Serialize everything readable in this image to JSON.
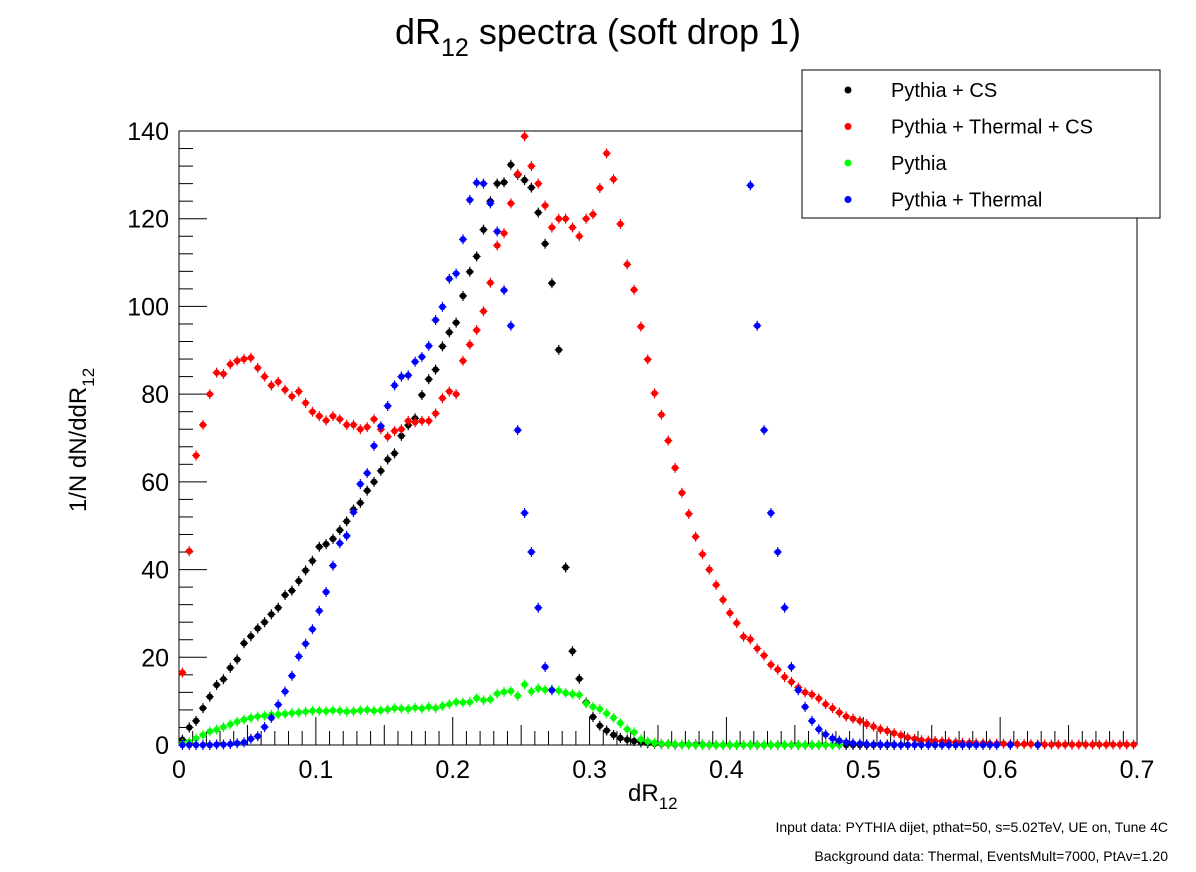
{
  "chart_data": {
    "type": "scatter",
    "title": "dR₁₂ spectra (soft drop 1)",
    "title_main": "dR",
    "title_sub": "12",
    "title_rest": " spectra (soft drop 1)",
    "xlabel": "dR₁₂",
    "ylabel": "1/N dN/ddR₁₂",
    "xlim": [
      0,
      0.7
    ],
    "ylim": [
      0,
      140
    ],
    "x_ticks": [
      "0",
      "0.1",
      "0.2",
      "0.3",
      "0.4",
      "0.5",
      "0.6",
      "0.7"
    ],
    "y_ticks": [
      "0",
      "20",
      "40",
      "60",
      "80",
      "100",
      "120",
      "140"
    ],
    "grid": false,
    "legend_position": "top-right",
    "series": [
      {
        "name": "Pythia + CS",
        "color": "#000000",
        "x": [
          0.0025,
          0.0075,
          0.0125,
          0.0175,
          0.0225,
          0.0275,
          0.0325,
          0.0375,
          0.0425,
          0.0475,
          0.0525,
          0.0575,
          0.0625,
          0.0675,
          0.0725,
          0.0775,
          0.0825,
          0.0875,
          0.0925,
          0.0975,
          0.1025,
          0.1075,
          0.1125,
          0.1175,
          0.1225,
          0.1275,
          0.1325,
          0.1375,
          0.1425,
          0.1475,
          0.1525,
          0.1575,
          0.1625,
          0.1675,
          0.1725,
          0.1775,
          0.1825,
          0.1875,
          0.1925,
          0.1975,
          0.2025,
          0.2075,
          0.2125,
          0.2175,
          0.2225,
          0.2275,
          0.2325,
          0.2375,
          0.2425,
          0.2475,
          0.2525,
          0.2575,
          0.2625,
          0.2675,
          0.2725,
          0.2775,
          0.2825,
          0.2875,
          0.2925,
          0.2975,
          0.3025,
          0.3075,
          0.3125,
          0.3175,
          0.3225,
          0.3275,
          0.3325,
          0.3375,
          0.3425,
          0.3475,
          0.3525,
          0.3575,
          0.3625,
          0.3675,
          0.3725,
          0.3775,
          0.3825,
          0.3875,
          0.3925,
          0.3975,
          0.4025,
          0.4075,
          0.4125,
          0.4175,
          0.4225,
          0.4275,
          0.4325,
          0.4375,
          0.4425,
          0.4475,
          0.4525,
          0.4575,
          0.4625,
          0.4675,
          0.4725,
          0.4775,
          0.4825,
          0.4875,
          0.4925,
          0.4975,
          0.5025,
          0.5075,
          0.5125,
          0.5175,
          0.5225,
          0.5275,
          0.5325
        ],
        "values": [
          1.2,
          4.0,
          5.5,
          8.4,
          11.0,
          13.7,
          15.0,
          17.6,
          19.5,
          23.2,
          24.8,
          26.6,
          28.0,
          29.8,
          31.3,
          34.2,
          35.2,
          37.4,
          39.8,
          42.0,
          45.2,
          45.8,
          47.0,
          49.0,
          51.0,
          53.7,
          55.2,
          58.0,
          60.0,
          62.5,
          65.1,
          66.5,
          70.5,
          72.9,
          74.5,
          79.8,
          83.4,
          85.6,
          90.9,
          94.1,
          96.3,
          102.4,
          107.9,
          111.4,
          117.5,
          124.0,
          128.0,
          128.3,
          132.3,
          130.0,
          128.8,
          127.1,
          121.4,
          114.3,
          105.3,
          90.1,
          40.5,
          21.4,
          15.1,
          9.7,
          6.4,
          4.4,
          3.3,
          2.3,
          1.6,
          1.2,
          0.9,
          0.6,
          0.4,
          0.3,
          0.2,
          0.2,
          0.1,
          0.1,
          0.1,
          0.1,
          0.1,
          0.0,
          0.0,
          0.0,
          0.0,
          0.0,
          0.0,
          0.0,
          0.0,
          0.0,
          0.0,
          0.0,
          0.0,
          0.0,
          0.0,
          0.0,
          0.0,
          0.0,
          0.0,
          0.0,
          0.0,
          0.0,
          0.0,
          0.0,
          0.0,
          0.0,
          0.0,
          0.0,
          0.0,
          0.0,
          0.0
        ]
      },
      {
        "name": "Pythia + Thermal + CS",
        "color": "#ff0000",
        "x": [
          0.0025,
          0.0075,
          0.0125,
          0.0175,
          0.0225,
          0.0275,
          0.0325,
          0.0375,
          0.0425,
          0.0475,
          0.0525,
          0.0575,
          0.0625,
          0.0675,
          0.0725,
          0.0775,
          0.0825,
          0.0875,
          0.0925,
          0.0975,
          0.1025,
          0.1075,
          0.1125,
          0.1175,
          0.1225,
          0.1275,
          0.1325,
          0.1375,
          0.1425,
          0.1475,
          0.1525,
          0.1575,
          0.1625,
          0.1675,
          0.1725,
          0.1775,
          0.1825,
          0.1875,
          0.1925,
          0.1975,
          0.2025,
          0.2075,
          0.2125,
          0.2175,
          0.2225,
          0.2275,
          0.2325,
          0.2375,
          0.2425,
          0.2475,
          0.2525,
          0.2575,
          0.2625,
          0.2675,
          0.2725,
          0.2775,
          0.2825,
          0.2875,
          0.2925,
          0.2975,
          0.3025,
          0.3075,
          0.3125,
          0.3175,
          0.3225,
          0.3275,
          0.3325,
          0.3375,
          0.3425,
          0.3475,
          0.3525,
          0.3575,
          0.3625,
          0.3675,
          0.3725,
          0.3775,
          0.3825,
          0.3875,
          0.3925,
          0.3975,
          0.4025,
          0.4075,
          0.4125,
          0.4175,
          0.4225,
          0.4275,
          0.4325,
          0.4375,
          0.4425,
          0.4475,
          0.4525,
          0.4575,
          0.4625,
          0.4675,
          0.4725,
          0.4775,
          0.4825,
          0.4875,
          0.4925,
          0.4975,
          0.5025,
          0.5075,
          0.5125,
          0.5175,
          0.5225,
          0.5275,
          0.5325,
          0.5375,
          0.5425,
          0.5475,
          0.5525,
          0.5575,
          0.5625,
          0.5675,
          0.5725,
          0.5775,
          0.5825,
          0.5875,
          0.5925,
          0.5975,
          0.6025,
          0.6075,
          0.6125,
          0.6175,
          0.6225,
          0.6275,
          0.6325,
          0.6375,
          0.6425,
          0.6475,
          0.6525,
          0.6575,
          0.6625,
          0.6675,
          0.6725,
          0.6775,
          0.6825,
          0.6875,
          0.6925,
          0.6975
        ],
        "values": [
          16.5,
          44.2,
          66.0,
          73.0,
          80.0,
          84.9,
          84.6,
          86.8,
          87.6,
          88.0,
          88.3,
          86.0,
          84.0,
          82.0,
          82.8,
          81.0,
          79.5,
          80.6,
          78.0,
          76.0,
          75.0,
          74.0,
          75.0,
          74.3,
          73.0,
          73.0,
          72.0,
          72.5,
          74.3,
          72.0,
          70.3,
          71.6,
          72.0,
          73.9,
          73.6,
          73.9,
          73.9,
          75.6,
          79.1,
          80.6,
          80.0,
          87.6,
          91.3,
          94.6,
          98.9,
          105.4,
          113.9,
          116.7,
          123.5,
          130.2,
          138.8,
          132.0,
          128.0,
          123.0,
          118.0,
          120.0,
          120.0,
          118.0,
          116.0,
          120.0,
          121.0,
          127.0,
          134.9,
          129.0,
          118.8,
          109.6,
          103.8,
          95.4,
          87.9,
          80.2,
          75.3,
          69.4,
          63.2,
          57.5,
          52.7,
          47.5,
          43.5,
          40.0,
          36.5,
          33.1,
          30.1,
          27.8,
          24.7,
          24.1,
          22.0,
          20.4,
          18.3,
          17.2,
          15.5,
          14.4,
          13.1,
          12.0,
          11.5,
          10.6,
          9.3,
          8.4,
          7.4,
          6.5,
          6.0,
          5.5,
          4.8,
          4.2,
          3.6,
          3.2,
          2.7,
          2.2,
          1.7,
          1.4,
          1.1,
          1.0,
          0.9,
          0.8,
          0.7,
          0.6,
          0.5,
          0.5,
          0.4,
          0.4,
          0.3,
          0.3,
          0.3,
          0.2,
          0.2,
          0.2,
          0.2,
          0.1,
          0.1,
          0.1,
          0.1,
          0.1,
          0.1,
          0.1,
          0.1,
          0.1,
          0.1,
          0.1,
          0.1,
          0.1,
          0.1,
          0.1
        ]
      },
      {
        "name": "Pythia",
        "color": "#00ff00",
        "x": [
          0.0025,
          0.0075,
          0.0125,
          0.0175,
          0.0225,
          0.0275,
          0.0325,
          0.0375,
          0.0425,
          0.0475,
          0.0525,
          0.0575,
          0.0625,
          0.0675,
          0.0725,
          0.0775,
          0.0825,
          0.0875,
          0.0925,
          0.0975,
          0.1025,
          0.1075,
          0.1125,
          0.1175,
          0.1225,
          0.1275,
          0.1325,
          0.1375,
          0.1425,
          0.1475,
          0.1525,
          0.1575,
          0.1625,
          0.1675,
          0.1725,
          0.1775,
          0.1825,
          0.1875,
          0.1925,
          0.1975,
          0.2025,
          0.2075,
          0.2125,
          0.2175,
          0.2225,
          0.2275,
          0.2325,
          0.2375,
          0.2425,
          0.2475,
          0.2525,
          0.2575,
          0.2625,
          0.2675,
          0.2725,
          0.2775,
          0.2825,
          0.2875,
          0.2925,
          0.2975,
          0.3025,
          0.3075,
          0.3125,
          0.3175,
          0.3225,
          0.3275,
          0.3325,
          0.3375,
          0.3425,
          0.3475,
          0.3525,
          0.3575,
          0.3625,
          0.3675,
          0.3725,
          0.3775,
          0.3825,
          0.3875,
          0.3925,
          0.3975,
          0.4025,
          0.4075,
          0.4125,
          0.4175,
          0.4225,
          0.4275,
          0.4325,
          0.4375,
          0.4425,
          0.4475,
          0.4525,
          0.4575,
          0.4625,
          0.4675,
          0.4725,
          0.4775,
          0.4825
        ],
        "values": [
          0.3,
          0.7,
          1.5,
          2.3,
          3.1,
          3.5,
          4.1,
          4.7,
          5.3,
          5.8,
          6.2,
          6.5,
          6.7,
          6.9,
          7.0,
          7.1,
          7.3,
          7.4,
          7.6,
          7.8,
          7.8,
          7.7,
          7.9,
          7.8,
          7.6,
          7.7,
          7.9,
          8.0,
          7.8,
          7.9,
          8.1,
          8.4,
          8.3,
          8.2,
          8.5,
          8.3,
          8.7,
          8.4,
          8.9,
          9.3,
          9.8,
          9.7,
          9.8,
          10.7,
          10.2,
          10.4,
          11.7,
          12.1,
          12.3,
          11.2,
          13.8,
          12.2,
          12.9,
          12.6,
          12.6,
          12.4,
          11.9,
          11.6,
          11.4,
          9.5,
          8.7,
          8.2,
          7.2,
          6.2,
          5.0,
          3.6,
          2.9,
          1.3,
          0.8,
          0.5,
          0.3,
          0.2,
          0.2,
          0.1,
          0.1,
          0.0,
          0.0,
          0.0,
          0.0,
          0.0,
          0.0,
          0.0,
          0.0,
          0.0,
          0.0,
          0.0,
          0.0,
          0.0,
          0.0,
          0.0,
          0.0,
          0.0,
          0.0,
          0.0,
          0.0,
          0.0,
          0.0
        ]
      },
      {
        "name": "Pythia + Thermal",
        "color": "#0000ff",
        "x": [
          0.0025,
          0.0075,
          0.0125,
          0.0175,
          0.0225,
          0.0275,
          0.0325,
          0.0375,
          0.0425,
          0.0475,
          0.0525,
          0.0575,
          0.0625,
          0.0675,
          0.0725,
          0.0775,
          0.0825,
          0.0875,
          0.0925,
          0.0975,
          0.1025,
          0.1075,
          0.1125,
          0.1175,
          0.1225,
          0.1275,
          0.1325,
          0.1375,
          0.1425,
          0.1475,
          0.1525,
          0.1575,
          0.1625,
          0.1675,
          0.1725,
          0.1775,
          0.1825,
          0.1875,
          0.1925,
          0.1975,
          0.2025,
          0.2075,
          0.2125,
          0.2175,
          0.2225,
          0.2275,
          0.2325,
          0.2375,
          0.2425,
          0.2475,
          0.2525,
          0.2575,
          0.2625,
          0.2675,
          0.2725,
          0.4175,
          0.4225,
          0.4275,
          0.4325,
          0.4375,
          0.4425,
          0.4475,
          0.4525,
          0.4575,
          0.4625,
          0.4675,
          0.4725,
          0.4775,
          0.4825,
          0.4875,
          0.4925,
          0.4975,
          0.5025,
          0.5075,
          0.5125,
          0.5175,
          0.5225,
          0.5275,
          0.5325,
          0.5375,
          0.5425,
          0.5475,
          0.5525,
          0.5575,
          0.5625,
          0.5675,
          0.5725,
          0.5775,
          0.5825,
          0.5875,
          0.5925,
          0.5975,
          0.6075,
          0.6275
        ],
        "values": [
          0.0,
          0.0,
          0.0,
          0.0,
          0.0,
          0.1,
          0.1,
          0.2,
          0.4,
          0.6,
          1.4,
          2.0,
          4.1,
          6.2,
          9.2,
          12.2,
          15.8,
          20.2,
          23.1,
          26.4,
          30.6,
          34.9,
          40.9,
          46.0,
          47.7,
          53.1,
          59.5,
          62.0,
          68.2,
          72.7,
          77.3,
          82.0,
          84.0,
          84.3,
          87.4,
          88.5,
          91.0,
          96.9,
          99.9,
          106.3,
          107.5,
          115.3,
          124.3,
          128.2,
          128.0,
          123.5,
          117.1,
          103.7,
          95.6,
          71.8,
          52.9,
          44.0,
          31.3,
          17.8,
          12.5,
          127.6,
          95.6,
          71.8,
          52.9,
          44.0,
          31.3,
          17.8,
          12.5,
          8.7,
          5.5,
          3.6,
          2.4,
          1.5,
          1.0,
          0.6,
          0.4,
          0.3,
          0.2,
          0.1,
          0.1,
          0.1,
          0.1,
          0.0,
          0.0,
          0.0,
          0.0,
          0.0,
          0.0,
          0.0,
          0.0,
          0.0,
          0.0,
          0.0,
          0.0,
          0.0,
          0.0,
          0.0,
          0.0,
          0.0
        ]
      }
    ]
  },
  "notes": {
    "input": "Input data: PYTHIA dijet, pthat=50, s=5.02TeV, UE on, Tune 4C",
    "background": "Background data: Thermal, EventsMult=7000, PtAv=1.20"
  }
}
